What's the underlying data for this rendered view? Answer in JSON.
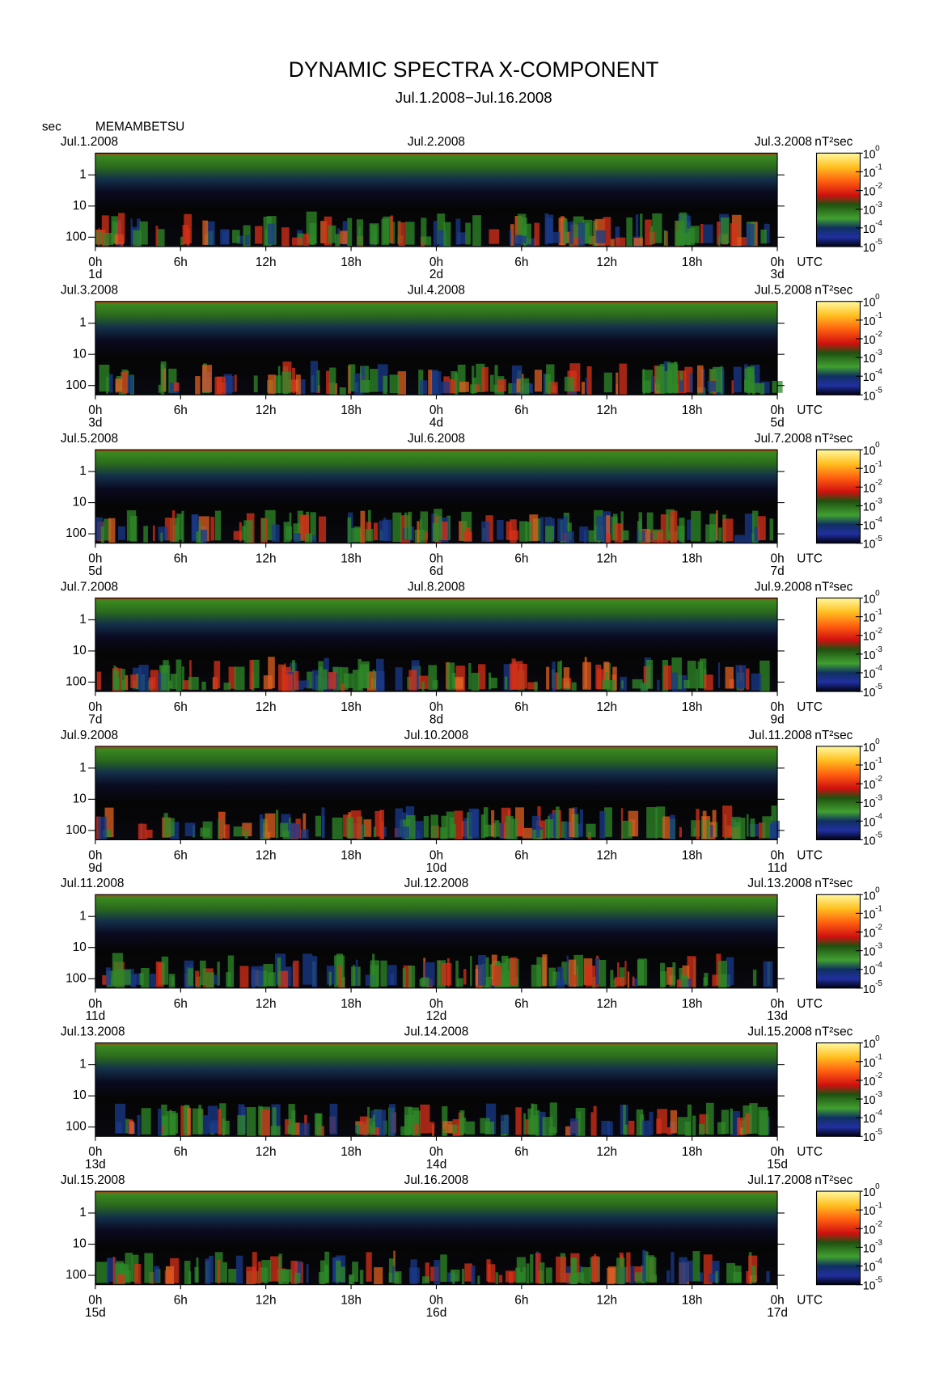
{
  "chart_data": {
    "type": "spectrogram",
    "title": "DYNAMIC SPECTRA X-COMPONENT",
    "subtitle": "Jul.1.2008−Jul.16.2008",
    "y_unit": "sec",
    "station": "MEMAMBETSU",
    "x_unit": "UTC",
    "xticks": [
      "0h",
      "6h",
      "12h",
      "18h",
      "0h",
      "6h",
      "12h",
      "18h",
      "0h"
    ],
    "ylim": [
      0.2,
      200
    ],
    "yticks": [
      1,
      10,
      100
    ],
    "log_y": true,
    "colorbar": {
      "unit": "nT²sec",
      "base": "10",
      "exponents": [
        "0",
        "-1",
        "-2",
        "-3",
        "-4",
        "-5"
      ]
    },
    "panels": [
      {
        "dates": [
          "Jul.1.2008",
          "Jul.2.2008",
          "Jul.3.2008"
        ],
        "days": [
          "1d",
          "2d",
          "3d"
        ]
      },
      {
        "dates": [
          "Jul.3.2008",
          "Jul.4.2008",
          "Jul.5.2008"
        ],
        "days": [
          "3d",
          "4d",
          "5d"
        ]
      },
      {
        "dates": [
          "Jul.5.2008",
          "Jul.6.2008",
          "Jul.7.2008"
        ],
        "days": [
          "5d",
          "6d",
          "7d"
        ]
      },
      {
        "dates": [
          "Jul.7.2008",
          "Jul.8.2008",
          "Jul.9.2008"
        ],
        "days": [
          "7d",
          "8d",
          "9d"
        ]
      },
      {
        "dates": [
          "Jul.9.2008",
          "Jul.10.2008",
          "Jul.11.2008"
        ],
        "days": [
          "9d",
          "10d",
          "11d"
        ]
      },
      {
        "dates": [
          "Jul.11.2008",
          "Jul.12.2008",
          "Jul.13.2008"
        ],
        "days": [
          "11d",
          "12d",
          "13d"
        ]
      },
      {
        "dates": [
          "Jul.13.2008",
          "Jul.14.2008",
          "Jul.15.2008"
        ],
        "days": [
          "13d",
          "14d",
          "15d"
        ]
      },
      {
        "dates": [
          "Jul.15.2008",
          "Jul.16.2008",
          "Jul.17.2008"
        ],
        "days": [
          "15d",
          "16d",
          "17d"
        ]
      }
    ]
  }
}
